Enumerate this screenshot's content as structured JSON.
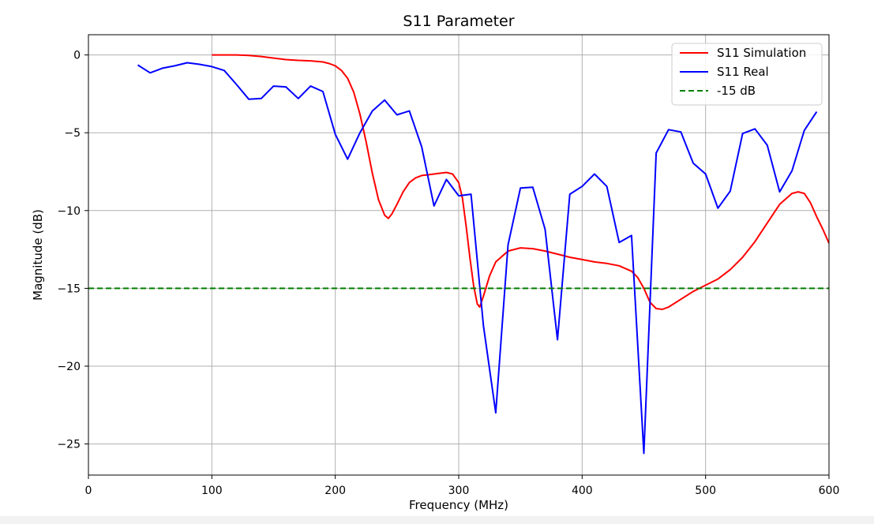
{
  "chart_data": {
    "type": "line",
    "title": "S11 Parameter",
    "xlabel": "Frequency (MHz)",
    "ylabel": "Magnitude (dB)",
    "xlim": [
      0,
      600
    ],
    "ylim": [
      -27,
      1.3
    ],
    "xticks": [
      0,
      100,
      200,
      300,
      400,
      500,
      600
    ],
    "yticks": [
      0,
      -5,
      -10,
      -15,
      -20,
      -25
    ],
    "ytick_labels": [
      "0",
      "−5",
      "−10",
      "−15",
      "−20",
      "−25"
    ],
    "grid": true,
    "legend_position": "top-right",
    "series": [
      {
        "name": "S11 Simulation",
        "color": "#ff0000",
        "style": "solid",
        "x": [
          100,
          110,
          120,
          130,
          140,
          150,
          160,
          170,
          180,
          190,
          195,
          200,
          205,
          210,
          215,
          220,
          225,
          230,
          235,
          240,
          243,
          246,
          250,
          255,
          260,
          265,
          270,
          275,
          280,
          285,
          290,
          295,
          300,
          303,
          306,
          309,
          312,
          315,
          317,
          320,
          325,
          330,
          340,
          350,
          360,
          370,
          380,
          390,
          400,
          410,
          420,
          430,
          440,
          445,
          450,
          455,
          460,
          465,
          470,
          480,
          490,
          500,
          510,
          520,
          530,
          540,
          550,
          560,
          570,
          575,
          580,
          585,
          590,
          595,
          600
        ],
        "y": [
          0,
          0,
          0,
          -0.03,
          -0.1,
          -0.2,
          -0.3,
          -0.35,
          -0.38,
          -0.45,
          -0.55,
          -0.7,
          -1.0,
          -1.5,
          -2.4,
          -3.8,
          -5.6,
          -7.6,
          -9.3,
          -10.3,
          -10.5,
          -10.2,
          -9.6,
          -8.8,
          -8.2,
          -7.9,
          -7.75,
          -7.7,
          -7.65,
          -7.6,
          -7.55,
          -7.65,
          -8.2,
          -9.2,
          -11.0,
          -13.0,
          -14.8,
          -16.0,
          -16.2,
          -15.5,
          -14.2,
          -13.3,
          -12.6,
          -12.4,
          -12.45,
          -12.6,
          -12.8,
          -13.0,
          -13.15,
          -13.3,
          -13.4,
          -13.55,
          -13.9,
          -14.3,
          -15.0,
          -15.9,
          -16.3,
          -16.35,
          -16.2,
          -15.7,
          -15.2,
          -14.8,
          -14.4,
          -13.8,
          -13.0,
          -12.0,
          -10.8,
          -9.6,
          -8.9,
          -8.8,
          -8.9,
          -9.5,
          -10.4,
          -11.2,
          -12.1
        ]
      },
      {
        "name": "S11 Real",
        "color": "#0000ff",
        "style": "solid",
        "x": [
          40,
          50,
          60,
          70,
          80,
          90,
          100,
          110,
          120,
          130,
          140,
          150,
          160,
          170,
          180,
          190,
          200,
          210,
          220,
          230,
          240,
          250,
          260,
          270,
          280,
          290,
          300,
          310,
          320,
          330,
          340,
          350,
          360,
          370,
          380,
          390,
          400,
          410,
          420,
          430,
          440,
          450,
          460,
          470,
          480,
          490,
          500,
          510,
          520,
          530,
          540,
          550,
          560,
          570,
          580,
          590
        ],
        "y": [
          -0.65,
          -1.15,
          -0.85,
          -0.7,
          -0.5,
          -0.6,
          -0.75,
          -1.0,
          -1.9,
          -2.85,
          -2.8,
          -2.0,
          -2.05,
          -2.8,
          -2.0,
          -2.35,
          -5.1,
          -6.7,
          -5.0,
          -3.6,
          -2.9,
          -3.85,
          -3.6,
          -5.9,
          -9.7,
          -8.0,
          -9.05,
          -8.95,
          -17.4,
          -23.0,
          -12.2,
          -8.55,
          -8.5,
          -11.2,
          -18.3,
          -8.95,
          -8.45,
          -7.65,
          -8.45,
          -12.05,
          -11.6,
          -25.6,
          -6.3,
          -4.8,
          -4.95,
          -6.95,
          -7.65,
          -9.85,
          -8.75,
          -5.05,
          -4.75,
          -5.8,
          -8.8,
          -7.45,
          -4.85,
          -3.65
        ]
      },
      {
        "name": "-15 dB",
        "color": "#008000",
        "style": "dashed",
        "x": [
          0,
          600
        ],
        "y": [
          -15,
          -15
        ]
      }
    ]
  }
}
